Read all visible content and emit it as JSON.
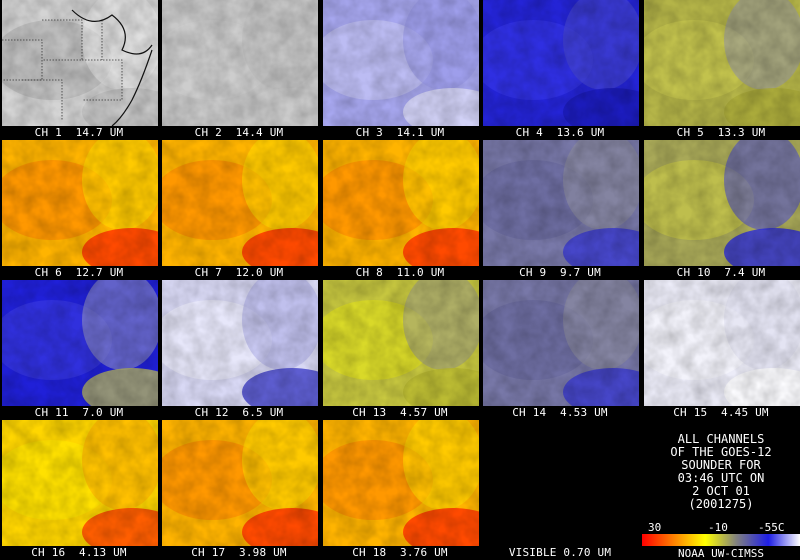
{
  "tiles": [
    {
      "caption": "CH 1  14.7 UM",
      "scheme": "gray_map"
    },
    {
      "caption": "CH 2  14.4 UM",
      "scheme": "gray_flat"
    },
    {
      "caption": "CH 3  14.1 UM",
      "scheme": "lavender"
    },
    {
      "caption": "CH 4  13.6 UM",
      "scheme": "blue"
    },
    {
      "caption": "CH 5  13.3 UM",
      "scheme": "olive"
    },
    {
      "caption": "CH 6  12.7 UM",
      "scheme": "hot"
    },
    {
      "caption": "CH 7  12.0 UM",
      "scheme": "hot"
    },
    {
      "caption": "CH 8  11.0 UM",
      "scheme": "hot"
    },
    {
      "caption": "CH 9  9.7 UM",
      "scheme": "slate"
    },
    {
      "caption": "CH 10  7.4 UM",
      "scheme": "olive_blue"
    },
    {
      "caption": "CH 11  7.0 UM",
      "scheme": "deep_blue"
    },
    {
      "caption": "CH 12  6.5 UM",
      "scheme": "pale_blue"
    },
    {
      "caption": "CH 13  4.57 UM",
      "scheme": "yellow_olive"
    },
    {
      "caption": "CH 14  4.53 UM",
      "scheme": "slate"
    },
    {
      "caption": "CH 15  4.45 UM",
      "scheme": "white"
    },
    {
      "caption": "CH 16  4.13 UM",
      "scheme": "hot_yellow"
    },
    {
      "caption": "CH 17  3.98 UM",
      "scheme": "hot"
    },
    {
      "caption": "CH 18  3.76 UM",
      "scheme": "hot"
    },
    {
      "caption": "VISIBLE 0.70 UM",
      "scheme": "empty"
    }
  ],
  "info": {
    "lines": [
      "ALL CHANNELS",
      "OF THE GOES-12",
      "SOUNDER FOR",
      "03:46 UTC ON",
      "2 OCT 01",
      "(2001275)"
    ]
  },
  "scale": {
    "labels": [
      "30",
      "-10",
      "-55C"
    ],
    "colors": [
      "#ff0000",
      "#ff8000",
      "#ffff00",
      "#808080",
      "#1e1ee6",
      "#ffffff"
    ]
  },
  "credit": "NOAA UW-CIMSS"
}
